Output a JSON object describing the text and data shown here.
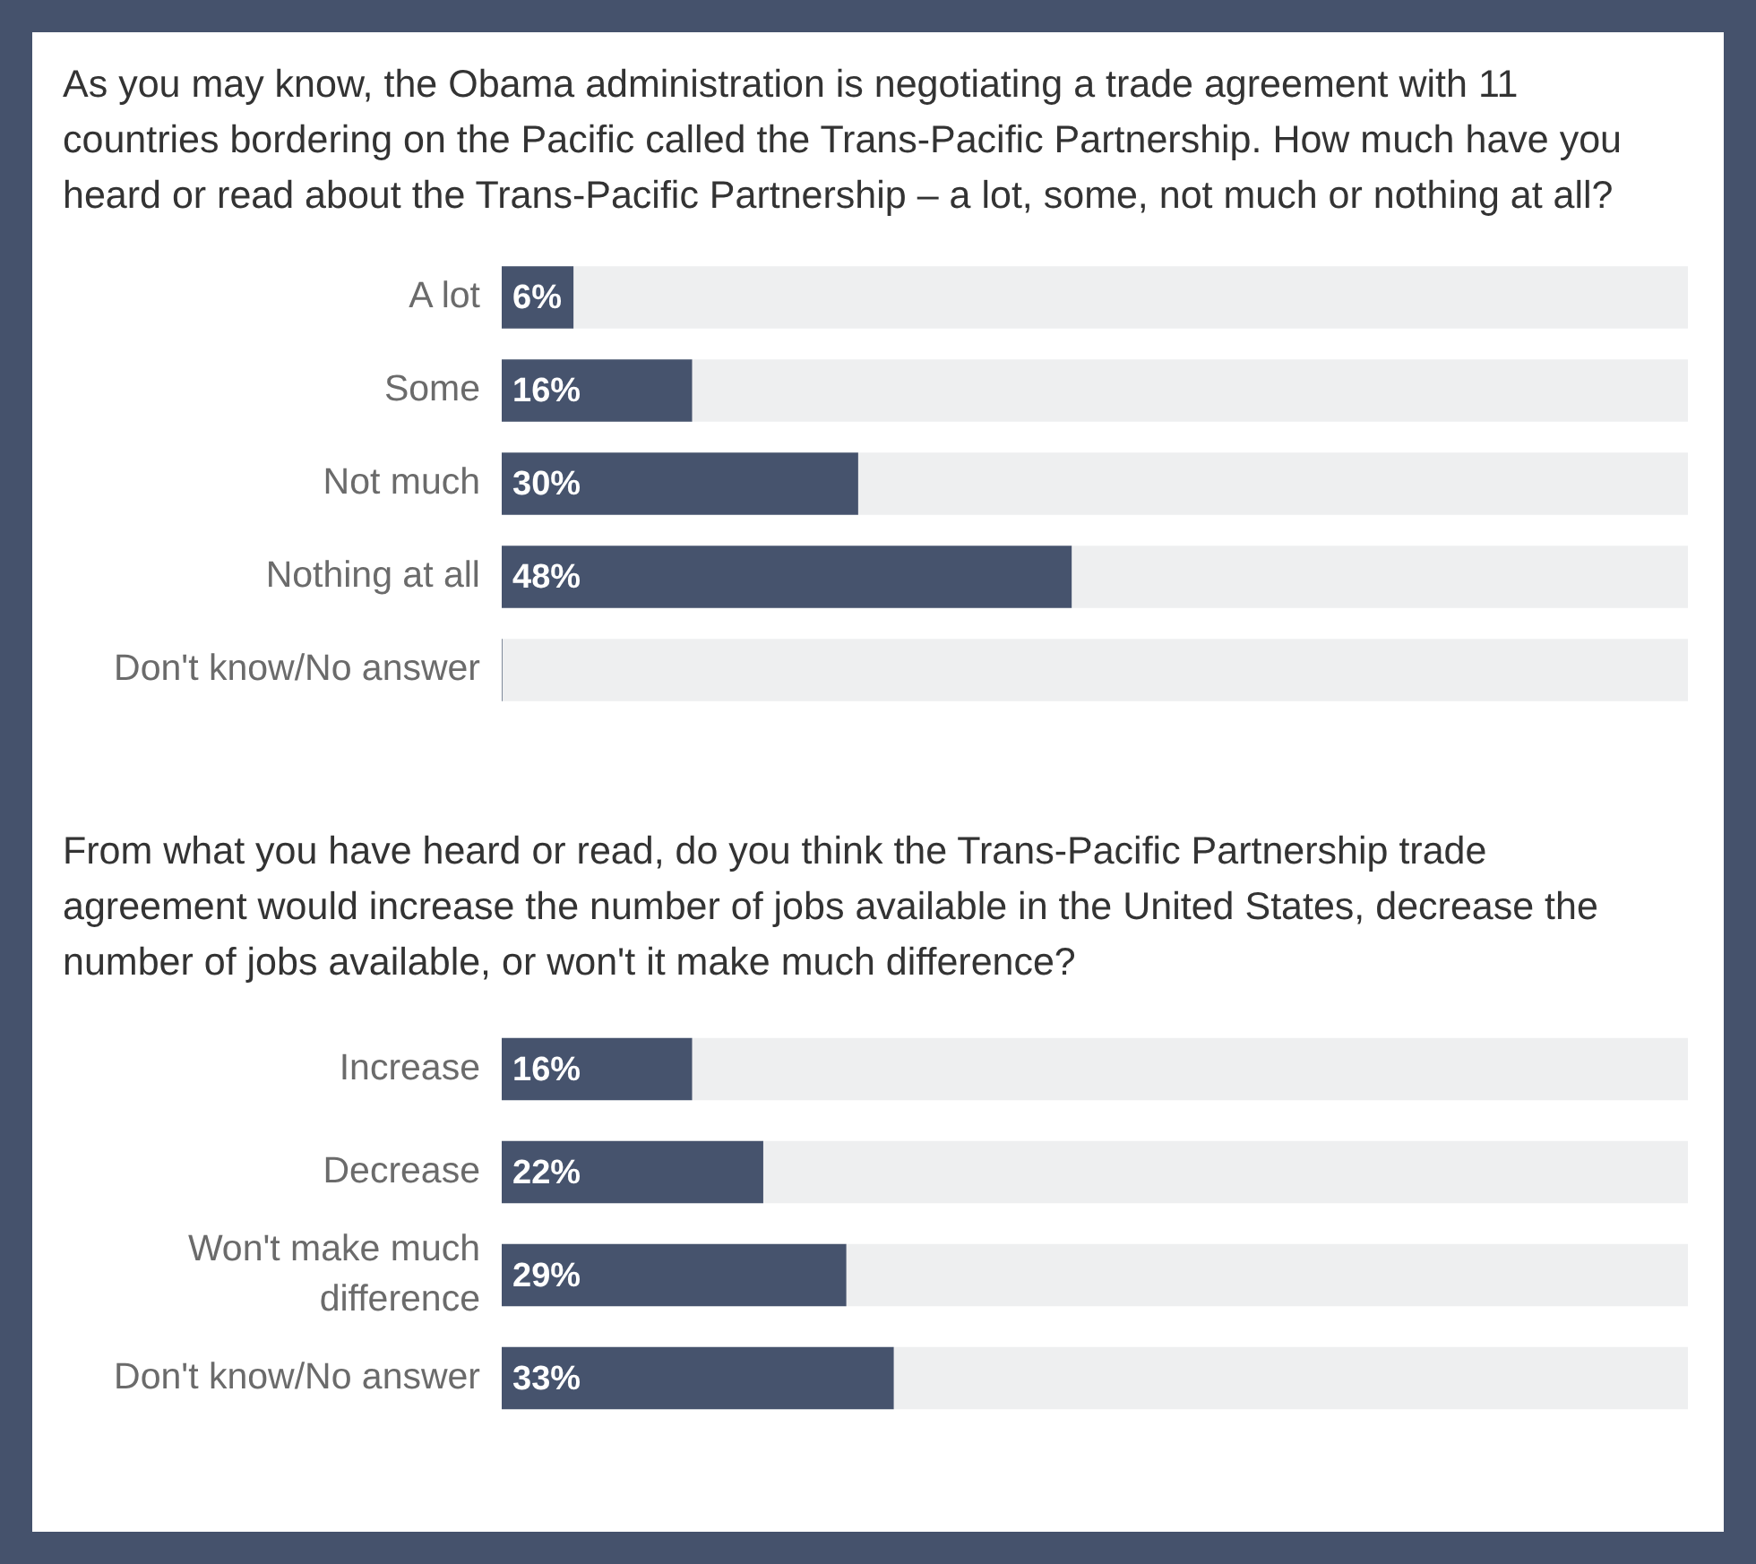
{
  "chart_data": [
    {
      "type": "bar",
      "orientation": "horizontal",
      "stacked": true,
      "title": "As you may know, the Obama administration is negotiating a trade agreement with 11 countries bordering on the Pacific called the Trans-Pacific Partnership. How much have you heard or read about the Trans-Pacific Partnership – a lot, some, not much or nothing at all?",
      "categories": [
        "A lot",
        "Some",
        "Not much",
        "Nothing at all",
        "Don't know/No answer"
      ],
      "series": [
        {
          "color": "#46536d",
          "values": [
            6,
            16,
            30,
            48,
            0
          ],
          "value_labels": [
            "6%",
            "16%",
            "30%",
            "48%",
            null
          ]
        },
        {
          "color": "#eeeff0",
          "values": [
            94,
            84,
            70,
            52,
            100
          ]
        }
      ],
      "xlim": [
        0,
        100
      ],
      "tick_labels": "y"
    },
    {
      "type": "bar",
      "orientation": "horizontal",
      "stacked": true,
      "title": "From what you have heard or read, do you think the Trans-Pacific Partnership trade agreement would increase the number of jobs available in the United States, decrease the number of jobs available, or won't it make much difference?",
      "categories": [
        "Increase",
        "Decrease",
        "Won't make much difference",
        "Don't know/No answer"
      ],
      "series": [
        {
          "color": "#46536d",
          "values": [
            16,
            22,
            29,
            33
          ],
          "value_labels": [
            "16%",
            "22%",
            "29%",
            "33%"
          ]
        },
        {
          "color": "#eeeff0",
          "values": [
            84,
            78,
            71,
            67
          ]
        }
      ],
      "xlim": [
        0,
        100
      ],
      "tick_labels": "y"
    }
  ]
}
